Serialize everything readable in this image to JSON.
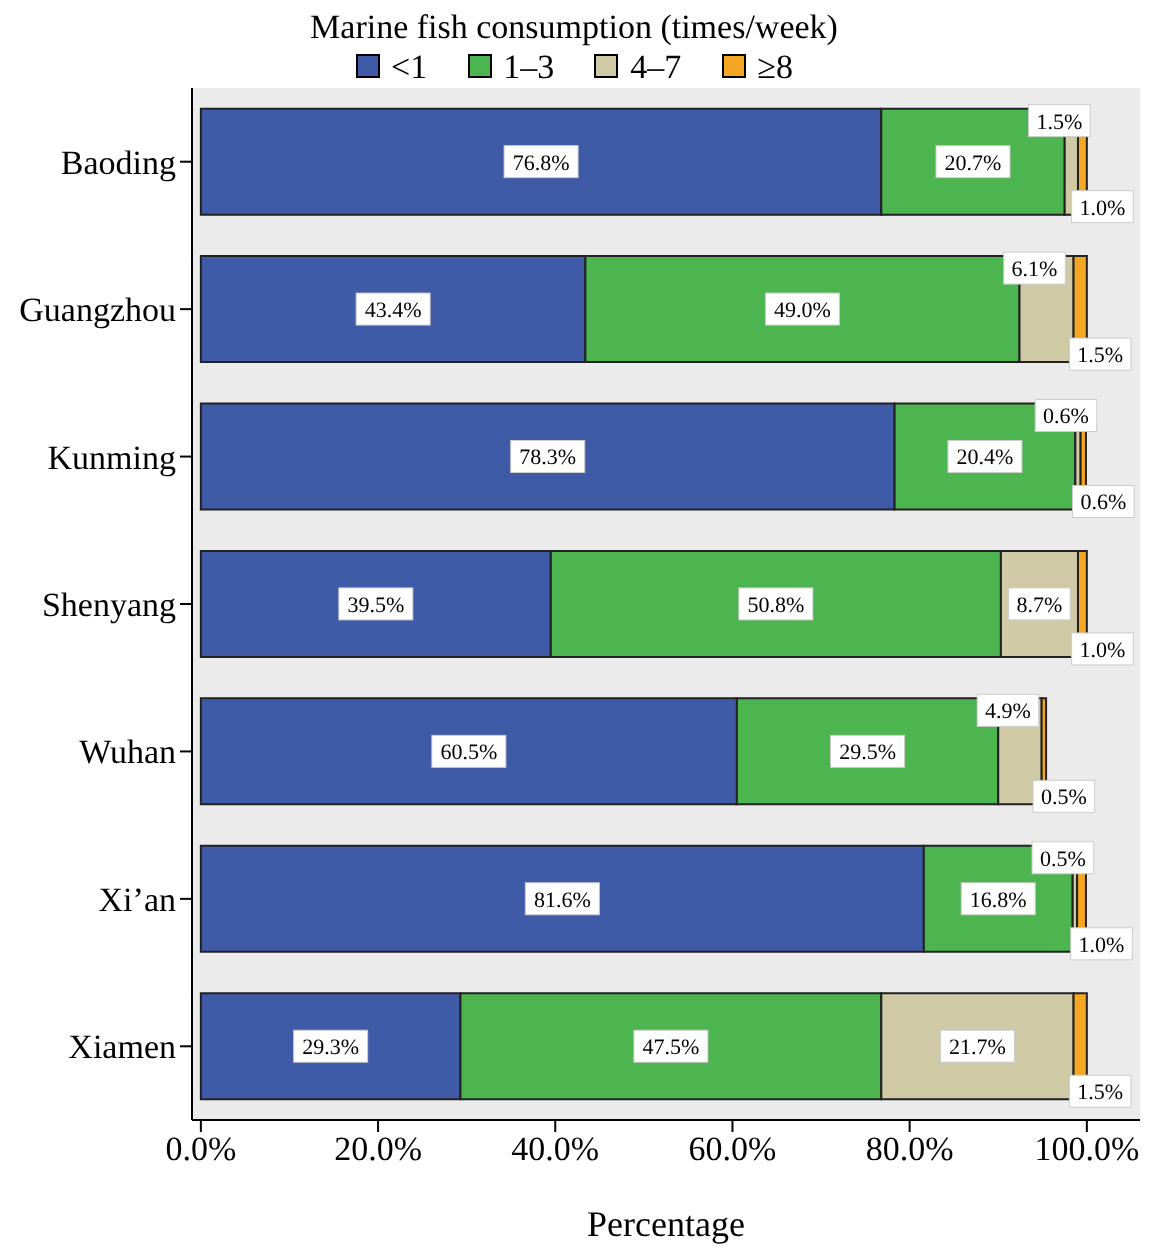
{
  "chart_data": {
    "type": "bar",
    "orientation": "horizontal",
    "stacked": true,
    "legend_title": "Marine fish consumption (times/week)",
    "legend": "top",
    "xlabel": "Percentage",
    "categories": [
      "Baoding",
      "Guangzhou",
      "Kunming",
      "Shenyang",
      "Wuhan",
      "Xi’an",
      "Xiamen"
    ],
    "series": [
      {
        "name": "<1",
        "color": "#3f5ba8",
        "values": [
          76.8,
          43.4,
          78.3,
          39.5,
          60.5,
          81.6,
          29.3
        ],
        "value_labels": [
          "76.8%",
          "43.4%",
          "78.3%",
          "39.5%",
          "60.5%",
          "81.6%",
          "29.3%"
        ]
      },
      {
        "name": "1–3",
        "color": "#4cb550",
        "values": [
          20.7,
          49.0,
          20.4,
          50.8,
          29.5,
          16.8,
          47.5
        ],
        "value_labels": [
          "20.7%",
          "49.0%",
          "20.4%",
          "50.8%",
          "29.5%",
          "16.8%",
          "47.5%"
        ]
      },
      {
        "name": "4–7",
        "color": "#cfc9a6",
        "values": [
          1.5,
          6.1,
          0.6,
          8.7,
          4.9,
          0.5,
          21.7
        ],
        "value_labels": [
          "1.5%",
          "6.1%",
          "0.6%",
          "8.7%",
          "4.9%",
          "0.5%",
          "21.7%"
        ]
      },
      {
        "name": "≥8",
        "color": "#f5a623",
        "values": [
          1.0,
          1.5,
          0.6,
          1.0,
          0.5,
          1.0,
          1.5
        ],
        "value_labels": [
          "1.0%",
          "1.5%",
          "0.6%",
          "1.0%",
          "0.5%",
          "1.0%",
          "1.5%"
        ]
      }
    ],
    "xlim": [
      -1,
      106
    ],
    "xticks": [
      {
        "value": 0,
        "label": "0.0%"
      },
      {
        "value": 20,
        "label": "20.0%"
      },
      {
        "value": 40,
        "label": "40.0%"
      },
      {
        "value": 60,
        "label": "60.0%"
      },
      {
        "value": 80,
        "label": "80.0%"
      },
      {
        "value": 100,
        "label": "100.0%"
      }
    ]
  }
}
